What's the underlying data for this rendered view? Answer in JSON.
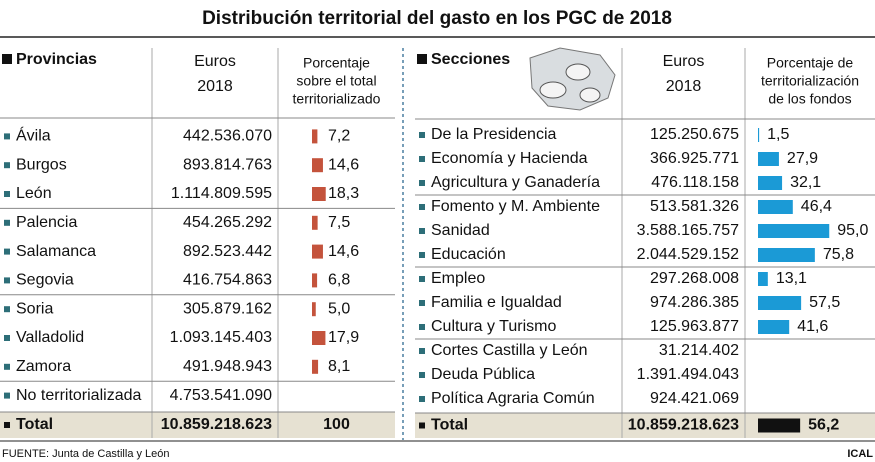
{
  "title": "Distribución territorial del gasto en los PGC de 2018",
  "provincias": {
    "headers": {
      "name": "Provincias",
      "euros": [
        "Euros",
        "2018"
      ],
      "pct": [
        "Porcentaje",
        "sobre el total",
        "territorializado"
      ]
    },
    "rows": [
      {
        "name": "Ávila",
        "euros": "442.536.070",
        "pct": {
          "value": 7.2,
          "label": "7,2"
        }
      },
      {
        "name": "Burgos",
        "euros": "893.814.763",
        "pct": {
          "value": 14.6,
          "label": "14,6"
        }
      },
      {
        "name": "León",
        "euros": "1.114.809.595",
        "pct": {
          "value": 18.3,
          "label": "18,3"
        }
      },
      {
        "name": "Palencia",
        "euros": "454.265.292",
        "pct": {
          "value": 7.5,
          "label": "7,5"
        }
      },
      {
        "name": "Salamanca",
        "euros": "892.523.442",
        "pct": {
          "value": 14.6,
          "label": "14,6"
        }
      },
      {
        "name": "Segovia",
        "euros": "416.754.863",
        "pct": {
          "value": 6.8,
          "label": "6,8"
        }
      },
      {
        "name": "Soria",
        "euros": "305.879.162",
        "pct": {
          "value": 5.0,
          "label": "5,0"
        }
      },
      {
        "name": "Valladolid",
        "euros": "1.093.145.403",
        "pct": {
          "value": 17.9,
          "label": "17,9"
        }
      },
      {
        "name": "Zamora",
        "euros": "491.948.943",
        "pct": {
          "value": 8.1,
          "label": "8,1"
        }
      },
      {
        "name": "No territorializada",
        "euros": "4.753.541.090"
      }
    ],
    "total": {
      "name": "Total",
      "euros": "10.859.218.623",
      "pct": "100"
    }
  },
  "secciones": {
    "headers": {
      "name": "Secciones",
      "euros": [
        "Euros",
        "2018"
      ],
      "pct": [
        "Porcentaje de",
        "territorialización",
        "de los fondos"
      ]
    },
    "rows": [
      {
        "name": "De la Presidencia",
        "euros": "125.250.675",
        "pct": {
          "value": 1.5,
          "label": "1,5"
        }
      },
      {
        "name": "Economía y Hacienda",
        "euros": "366.925.771",
        "pct": {
          "value": 27.9,
          "label": "27,9"
        }
      },
      {
        "name": "Agricultura y Ganadería",
        "euros": "476.118.158",
        "pct": {
          "value": 32.1,
          "label": "32,1"
        }
      },
      {
        "name": "Fomento y M. Ambiente",
        "euros": "513.581.326",
        "pct": {
          "value": 46.4,
          "label": "46,4"
        }
      },
      {
        "name": "Sanidad",
        "euros": "3.588.165.757",
        "pct": {
          "value": 95.0,
          "label": "95,0"
        }
      },
      {
        "name": "Educación",
        "euros": "2.044.529.152",
        "pct": {
          "value": 75.8,
          "label": "75,8"
        }
      },
      {
        "name": "Empleo",
        "euros": "297.268.008",
        "pct": {
          "value": 13.1,
          "label": "13,1"
        }
      },
      {
        "name": "Familia e Igualdad",
        "euros": "974.286.385",
        "pct": {
          "value": 57.5,
          "label": "57,5"
        }
      },
      {
        "name": "Cultura y Turismo",
        "euros": "125.963.877",
        "pct": {
          "value": 41.6,
          "label": "41,6"
        }
      },
      {
        "name": "Cortes Castilla y León",
        "euros": "31.214.402"
      },
      {
        "name": "Deuda Pública",
        "euros": "1.391.494.043"
      },
      {
        "name": "Política Agraria Común",
        "euros": "924.421.069"
      }
    ],
    "total": {
      "name": "Total",
      "euros": "10.859.218.623",
      "pct": {
        "value": 56.2,
        "label": "56,2"
      }
    }
  },
  "source": "FUENTE: Junta de Castilla y León",
  "credit": "ICAL"
}
